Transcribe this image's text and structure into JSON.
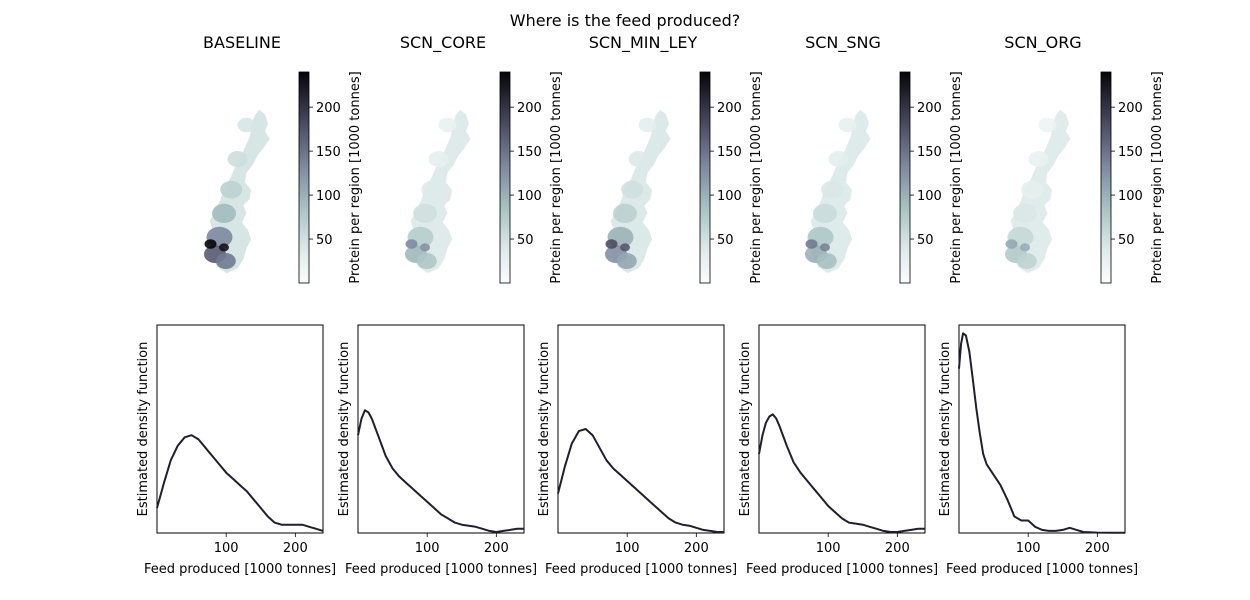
{
  "figure": {
    "suptitle": "Where is the feed produced?"
  },
  "colorbar": {
    "label": "Protein per region [1000 tonnes]",
    "ticks": [
      50,
      100,
      150,
      200
    ],
    "range": [
      0,
      240
    ],
    "colormap": "bone_r"
  },
  "colors": {
    "curve": "#1f1f2e",
    "axis": "#000000",
    "map_light": "#f2f7f6",
    "map_dark": "#050508"
  },
  "chart_data": [
    {
      "type": "line",
      "panel": "BASELINE",
      "title": "BASELINE",
      "xlabel": "Feed produced [1000 tonnes]",
      "ylabel": "Estimated density function",
      "xticks": [
        100,
        200
      ],
      "xlim": [
        0,
        240
      ],
      "ylim": [
        0,
        1
      ],
      "x": [
        0,
        10,
        20,
        30,
        40,
        50,
        60,
        70,
        80,
        90,
        100,
        110,
        120,
        130,
        140,
        150,
        160,
        170,
        180,
        190,
        200,
        210,
        220,
        230,
        240
      ],
      "y": [
        0.12,
        0.24,
        0.35,
        0.42,
        0.46,
        0.47,
        0.45,
        0.41,
        0.37,
        0.33,
        0.29,
        0.26,
        0.23,
        0.2,
        0.16,
        0.12,
        0.08,
        0.05,
        0.04,
        0.04,
        0.04,
        0.04,
        0.03,
        0.02,
        0.01
      ]
    },
    {
      "type": "line",
      "panel": "SCN_CORE",
      "title": "SCN_CORE",
      "xlabel": "Feed produced [1000 tonnes]",
      "ylabel": "Estimated density function",
      "xticks": [
        100,
        200
      ],
      "xlim": [
        0,
        240
      ],
      "ylim": [
        0,
        1
      ],
      "x": [
        0,
        5,
        10,
        15,
        20,
        30,
        40,
        50,
        60,
        70,
        80,
        90,
        100,
        110,
        120,
        130,
        140,
        150,
        160,
        170,
        180,
        190,
        200,
        210,
        220,
        230,
        240
      ],
      "y": [
        0.47,
        0.55,
        0.59,
        0.58,
        0.55,
        0.46,
        0.37,
        0.31,
        0.27,
        0.24,
        0.21,
        0.18,
        0.15,
        0.12,
        0.09,
        0.07,
        0.05,
        0.04,
        0.035,
        0.03,
        0.02,
        0.01,
        0.005,
        0.01,
        0.015,
        0.02,
        0.02
      ]
    },
    {
      "type": "line",
      "panel": "SCN_MIN_LEY",
      "title": "SCN_MIN_LEY",
      "xlabel": "Feed produced [1000 tonnes]",
      "ylabel": "Estimated density function",
      "xticks": [
        100,
        200
      ],
      "xlim": [
        0,
        240
      ],
      "ylim": [
        0,
        1
      ],
      "x": [
        0,
        10,
        20,
        30,
        40,
        50,
        60,
        70,
        80,
        90,
        100,
        110,
        120,
        130,
        140,
        150,
        160,
        170,
        180,
        190,
        200,
        210,
        220,
        230,
        240
      ],
      "y": [
        0.19,
        0.32,
        0.43,
        0.49,
        0.5,
        0.47,
        0.41,
        0.35,
        0.31,
        0.28,
        0.25,
        0.22,
        0.19,
        0.16,
        0.13,
        0.1,
        0.07,
        0.05,
        0.04,
        0.035,
        0.025,
        0.015,
        0.01,
        0.005,
        0.005
      ]
    },
    {
      "type": "line",
      "panel": "SCN_SNG",
      "title": "SCN_SNG",
      "xlabel": "Feed produced [1000 tonnes]",
      "ylabel": "Estimated density function",
      "xticks": [
        100,
        200
      ],
      "xlim": [
        0,
        240
      ],
      "ylim": [
        0,
        1
      ],
      "x": [
        0,
        5,
        10,
        15,
        20,
        25,
        30,
        40,
        50,
        60,
        70,
        80,
        90,
        100,
        110,
        120,
        130,
        140,
        150,
        160,
        170,
        180,
        190,
        200,
        210,
        220,
        230,
        240
      ],
      "y": [
        0.38,
        0.47,
        0.53,
        0.56,
        0.57,
        0.55,
        0.51,
        0.42,
        0.34,
        0.29,
        0.25,
        0.21,
        0.17,
        0.13,
        0.1,
        0.07,
        0.05,
        0.045,
        0.04,
        0.03,
        0.02,
        0.01,
        0.005,
        0.005,
        0.01,
        0.015,
        0.02,
        0.02
      ]
    },
    {
      "type": "line",
      "panel": "SCN_ORG",
      "title": "SCN_ORG",
      "xlabel": "Feed produced [1000 tonnes]",
      "ylabel": "Estimated density function",
      "xticks": [
        100,
        200
      ],
      "xlim": [
        0,
        240
      ],
      "ylim": [
        0,
        1
      ],
      "x": [
        0,
        3,
        6,
        10,
        15,
        20,
        25,
        30,
        35,
        40,
        50,
        60,
        70,
        75,
        80,
        90,
        100,
        110,
        120,
        130,
        140,
        150,
        160,
        170,
        180,
        200,
        220,
        240
      ],
      "y": [
        0.79,
        0.91,
        0.96,
        0.95,
        0.87,
        0.74,
        0.6,
        0.48,
        0.38,
        0.33,
        0.28,
        0.23,
        0.16,
        0.12,
        0.08,
        0.06,
        0.06,
        0.03,
        0.015,
        0.01,
        0.01,
        0.015,
        0.025,
        0.015,
        0.005,
        0.002,
        0.001,
        0.001
      ]
    }
  ]
}
